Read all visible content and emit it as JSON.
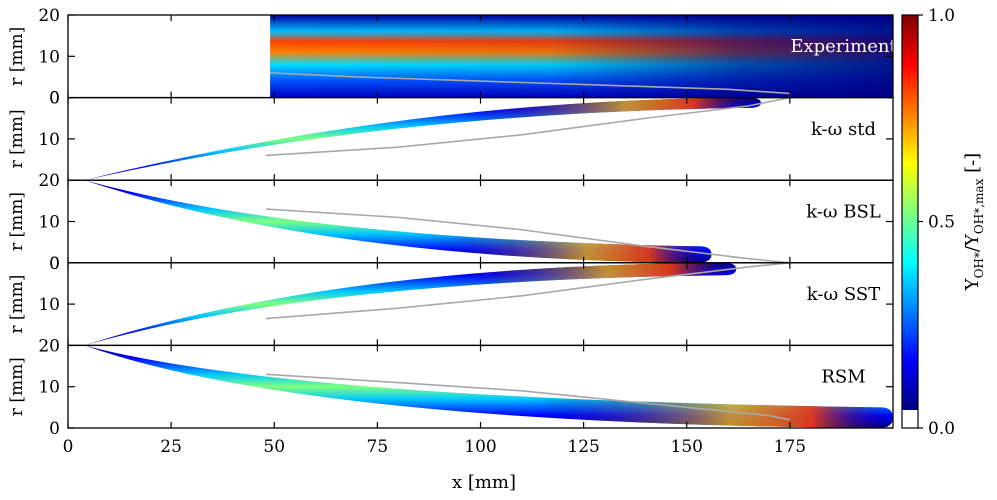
{
  "chart_data": {
    "type": "heatmap",
    "xlabel": "x  [mm]",
    "ylabel": "r  [mm]",
    "xlim": [
      0,
      200
    ],
    "xticks": [
      0,
      25,
      50,
      75,
      100,
      125,
      150,
      175
    ],
    "panels": [
      {
        "label": "Experiment",
        "r_ticks": [
          "20",
          "10",
          "0"
        ],
        "r_ticks_values": [
          20,
          10,
          0
        ],
        "orientation": "up",
        "type": "experiment",
        "data_start_x": 49,
        "peak_band": {
          "r_start": 11,
          "r_end": 3,
          "x_start": 49,
          "x_end": 140
        },
        "contour": [
          [
            49,
            6
          ],
          [
            70,
            5
          ],
          [
            100,
            4
          ],
          [
            130,
            3
          ],
          [
            160,
            2
          ],
          [
            175,
            1
          ],
          [
            175,
            0
          ]
        ]
      },
      {
        "label": "k-ω  std",
        "r_ticks": [
          "0",
          "10"
        ],
        "r_ticks_values": [
          0,
          10
        ],
        "orientation": "down",
        "type": "model",
        "tip_x": 4,
        "tip_r": 20,
        "end_x": 168,
        "end_width_r": 2.5,
        "curvature": 0.45,
        "contour": [
          [
            48,
            14
          ],
          [
            80,
            12
          ],
          [
            110,
            9
          ],
          [
            140,
            5
          ],
          [
            165,
            2
          ],
          [
            175,
            0
          ]
        ]
      },
      {
        "label": "k-ω  BSL",
        "r_ticks": [
          "20",
          "10",
          "0"
        ],
        "r_ticks_values": [
          20,
          10,
          0
        ],
        "orientation": "up",
        "type": "model",
        "tip_x": 4,
        "tip_r": 20,
        "end_x": 156,
        "end_width_r": 4,
        "curvature": 0.35,
        "contour": [
          [
            48,
            13
          ],
          [
            80,
            11
          ],
          [
            110,
            8
          ],
          [
            140,
            4
          ],
          [
            165,
            1
          ],
          [
            175,
            0
          ]
        ]
      },
      {
        "label": "k-ω  SST",
        "r_ticks": [
          "0",
          "10"
        ],
        "r_ticks_values": [
          0,
          10
        ],
        "orientation": "down",
        "type": "model",
        "tip_x": 4,
        "tip_r": 20,
        "end_x": 162,
        "end_width_r": 3,
        "curvature": 0.35,
        "contour": [
          [
            48,
            13.5
          ],
          [
            80,
            11
          ],
          [
            110,
            8
          ],
          [
            140,
            4
          ],
          [
            165,
            1
          ],
          [
            175,
            0
          ]
        ]
      },
      {
        "label": "RSM",
        "r_ticks": [
          "20",
          "10",
          "0"
        ],
        "r_ticks_values": [
          20,
          10,
          0
        ],
        "orientation": "up",
        "type": "model",
        "tip_x": 4,
        "tip_r": 20,
        "end_x": 200,
        "end_width_r": 5,
        "curvature": 0.25,
        "contour": [
          [
            48,
            13
          ],
          [
            80,
            11
          ],
          [
            110,
            9
          ],
          [
            140,
            6
          ],
          [
            170,
            3
          ],
          [
            175,
            2
          ]
        ]
      }
    ],
    "colorbar": {
      "label_parts": [
        "Y",
        "OH*",
        "/Y",
        "OH*,max",
        "  [-]"
      ],
      "ticks": [
        "0.0",
        "0.5",
        "1.0"
      ],
      "ticks_values": [
        0.0,
        0.5,
        1.0
      ],
      "colormap": "jet"
    }
  }
}
